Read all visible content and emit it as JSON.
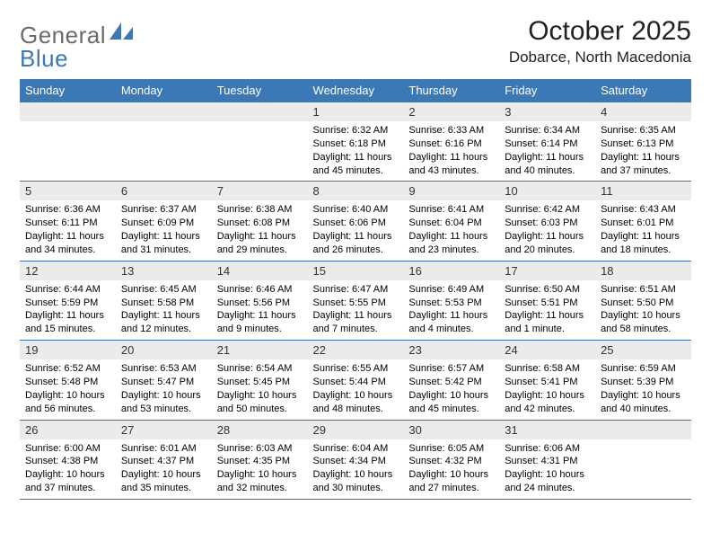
{
  "logo": {
    "text1": "General",
    "text2": "Blue",
    "color_gray": "#6a6a6a",
    "color_blue": "#3a78b6"
  },
  "header": {
    "title": "October 2025",
    "location": "Dobarce, North Macedonia"
  },
  "colors": {
    "header_bg": "#3a78b6",
    "header_text": "#ffffff",
    "daynum_bg": "#ecebeb",
    "border": "#3a78b6"
  },
  "dayNames": [
    "Sunday",
    "Monday",
    "Tuesday",
    "Wednesday",
    "Thursday",
    "Friday",
    "Saturday"
  ],
  "weeks": [
    [
      null,
      null,
      null,
      {
        "num": "1",
        "sunrise": "6:32 AM",
        "sunset": "6:18 PM",
        "daylight": "11 hours and 45 minutes."
      },
      {
        "num": "2",
        "sunrise": "6:33 AM",
        "sunset": "6:16 PM",
        "daylight": "11 hours and 43 minutes."
      },
      {
        "num": "3",
        "sunrise": "6:34 AM",
        "sunset": "6:14 PM",
        "daylight": "11 hours and 40 minutes."
      },
      {
        "num": "4",
        "sunrise": "6:35 AM",
        "sunset": "6:13 PM",
        "daylight": "11 hours and 37 minutes."
      }
    ],
    [
      {
        "num": "5",
        "sunrise": "6:36 AM",
        "sunset": "6:11 PM",
        "daylight": "11 hours and 34 minutes."
      },
      {
        "num": "6",
        "sunrise": "6:37 AM",
        "sunset": "6:09 PM",
        "daylight": "11 hours and 31 minutes."
      },
      {
        "num": "7",
        "sunrise": "6:38 AM",
        "sunset": "6:08 PM",
        "daylight": "11 hours and 29 minutes."
      },
      {
        "num": "8",
        "sunrise": "6:40 AM",
        "sunset": "6:06 PM",
        "daylight": "11 hours and 26 minutes."
      },
      {
        "num": "9",
        "sunrise": "6:41 AM",
        "sunset": "6:04 PM",
        "daylight": "11 hours and 23 minutes."
      },
      {
        "num": "10",
        "sunrise": "6:42 AM",
        "sunset": "6:03 PM",
        "daylight": "11 hours and 20 minutes."
      },
      {
        "num": "11",
        "sunrise": "6:43 AM",
        "sunset": "6:01 PM",
        "daylight": "11 hours and 18 minutes."
      }
    ],
    [
      {
        "num": "12",
        "sunrise": "6:44 AM",
        "sunset": "5:59 PM",
        "daylight": "11 hours and 15 minutes."
      },
      {
        "num": "13",
        "sunrise": "6:45 AM",
        "sunset": "5:58 PM",
        "daylight": "11 hours and 12 minutes."
      },
      {
        "num": "14",
        "sunrise": "6:46 AM",
        "sunset": "5:56 PM",
        "daylight": "11 hours and 9 minutes."
      },
      {
        "num": "15",
        "sunrise": "6:47 AM",
        "sunset": "5:55 PM",
        "daylight": "11 hours and 7 minutes."
      },
      {
        "num": "16",
        "sunrise": "6:49 AM",
        "sunset": "5:53 PM",
        "daylight": "11 hours and 4 minutes."
      },
      {
        "num": "17",
        "sunrise": "6:50 AM",
        "sunset": "5:51 PM",
        "daylight": "11 hours and 1 minute."
      },
      {
        "num": "18",
        "sunrise": "6:51 AM",
        "sunset": "5:50 PM",
        "daylight": "10 hours and 58 minutes."
      }
    ],
    [
      {
        "num": "19",
        "sunrise": "6:52 AM",
        "sunset": "5:48 PM",
        "daylight": "10 hours and 56 minutes."
      },
      {
        "num": "20",
        "sunrise": "6:53 AM",
        "sunset": "5:47 PM",
        "daylight": "10 hours and 53 minutes."
      },
      {
        "num": "21",
        "sunrise": "6:54 AM",
        "sunset": "5:45 PM",
        "daylight": "10 hours and 50 minutes."
      },
      {
        "num": "22",
        "sunrise": "6:55 AM",
        "sunset": "5:44 PM",
        "daylight": "10 hours and 48 minutes."
      },
      {
        "num": "23",
        "sunrise": "6:57 AM",
        "sunset": "5:42 PM",
        "daylight": "10 hours and 45 minutes."
      },
      {
        "num": "24",
        "sunrise": "6:58 AM",
        "sunset": "5:41 PM",
        "daylight": "10 hours and 42 minutes."
      },
      {
        "num": "25",
        "sunrise": "6:59 AM",
        "sunset": "5:39 PM",
        "daylight": "10 hours and 40 minutes."
      }
    ],
    [
      {
        "num": "26",
        "sunrise": "6:00 AM",
        "sunset": "4:38 PM",
        "daylight": "10 hours and 37 minutes."
      },
      {
        "num": "27",
        "sunrise": "6:01 AM",
        "sunset": "4:37 PM",
        "daylight": "10 hours and 35 minutes."
      },
      {
        "num": "28",
        "sunrise": "6:03 AM",
        "sunset": "4:35 PM",
        "daylight": "10 hours and 32 minutes."
      },
      {
        "num": "29",
        "sunrise": "6:04 AM",
        "sunset": "4:34 PM",
        "daylight": "10 hours and 30 minutes."
      },
      {
        "num": "30",
        "sunrise": "6:05 AM",
        "sunset": "4:32 PM",
        "daylight": "10 hours and 27 minutes."
      },
      {
        "num": "31",
        "sunrise": "6:06 AM",
        "sunset": "4:31 PM",
        "daylight": "10 hours and 24 minutes."
      },
      null
    ]
  ],
  "labels": {
    "sunrise": "Sunrise:",
    "sunset": "Sunset:",
    "daylight": "Daylight:"
  }
}
